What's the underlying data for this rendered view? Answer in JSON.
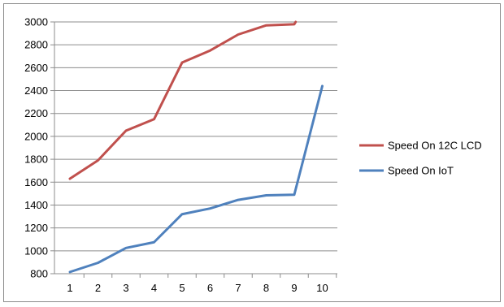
{
  "chart_data": {
    "type": "line",
    "categories": [
      "1",
      "2",
      "3",
      "4",
      "5",
      "6",
      "7",
      "8",
      "9",
      "10"
    ],
    "ylim": [
      800,
      3000
    ],
    "y_ticks": [
      800,
      1000,
      1200,
      1400,
      1600,
      1800,
      2000,
      2200,
      2400,
      2600,
      2800,
      3000
    ],
    "grid": "horizontal",
    "legend_position": "right",
    "series": [
      {
        "name": "Speed On 12C LCD",
        "color": "#c0504d",
        "x": [
          1,
          2,
          3,
          4,
          5,
          6,
          7,
          8,
          9,
          9.05
        ],
        "values": [
          1630,
          1790,
          2050,
          2150,
          2645,
          2750,
          2890,
          2970,
          2980,
          3000
        ]
      },
      {
        "name": "Speed On IoT",
        "color": "#4f81bd",
        "x": [
          1,
          2,
          3,
          4,
          5,
          6,
          7,
          8,
          9,
          10
        ],
        "values": [
          815,
          895,
          1025,
          1075,
          1320,
          1370,
          1445,
          1485,
          1490,
          2440
        ]
      }
    ]
  }
}
